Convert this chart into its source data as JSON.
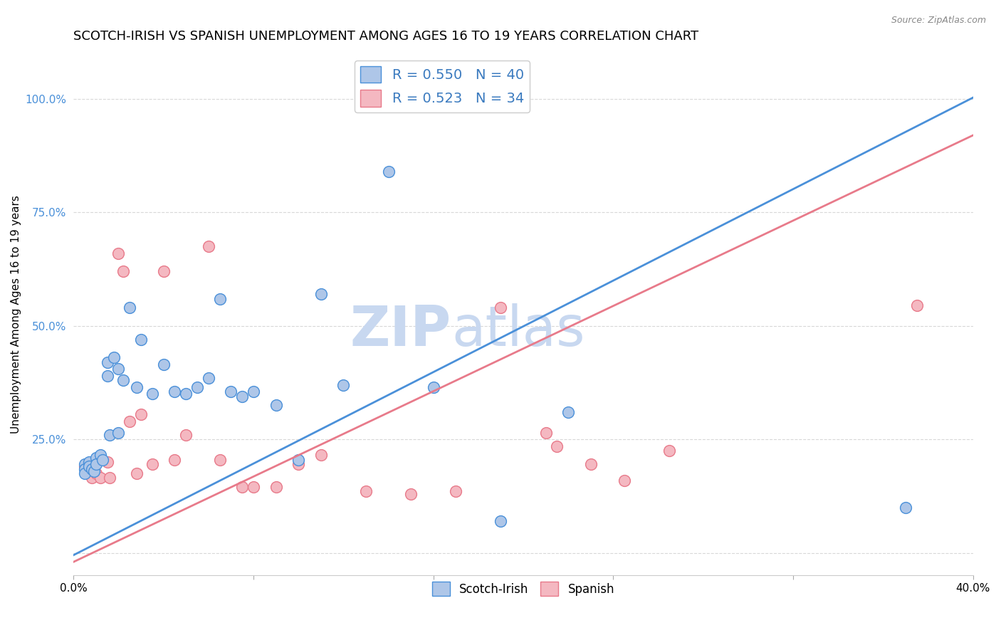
{
  "title": "SCOTCH-IRISH VS SPANISH UNEMPLOYMENT AMONG AGES 16 TO 19 YEARS CORRELATION CHART",
  "source": "Source: ZipAtlas.com",
  "xlabel": "",
  "ylabel": "Unemployment Among Ages 16 to 19 years",
  "xlim": [
    0.0,
    0.4
  ],
  "ylim": [
    -0.05,
    1.1
  ],
  "x_ticks": [
    0.0,
    0.08,
    0.16,
    0.24,
    0.32,
    0.4
  ],
  "x_tick_labels": [
    "0.0%",
    "",
    "",
    "",
    "",
    "40.0%"
  ],
  "y_ticks": [
    0.0,
    0.25,
    0.5,
    0.75,
    1.0
  ],
  "y_tick_labels": [
    "",
    "25.0%",
    "50.0%",
    "75.0%",
    "100.0%"
  ],
  "scotch_irish_color": "#aec6e8",
  "spanish_color": "#f4b8c1",
  "line_scotch_irish_color": "#4a90d9",
  "line_spanish_color": "#e87a8a",
  "R_scotch_irish": 0.55,
  "N_scotch_irish": 40,
  "R_spanish": 0.523,
  "N_spanish": 34,
  "scotch_irish_x": [
    0.005,
    0.005,
    0.005,
    0.007,
    0.007,
    0.008,
    0.009,
    0.01,
    0.01,
    0.012,
    0.013,
    0.015,
    0.015,
    0.016,
    0.018,
    0.02,
    0.02,
    0.022,
    0.025,
    0.028,
    0.03,
    0.035,
    0.04,
    0.045,
    0.05,
    0.055,
    0.06,
    0.065,
    0.07,
    0.075,
    0.08,
    0.09,
    0.1,
    0.11,
    0.12,
    0.14,
    0.16,
    0.19,
    0.22,
    0.37
  ],
  "scotch_irish_y": [
    0.195,
    0.185,
    0.175,
    0.2,
    0.19,
    0.185,
    0.18,
    0.21,
    0.195,
    0.215,
    0.205,
    0.42,
    0.39,
    0.26,
    0.43,
    0.405,
    0.265,
    0.38,
    0.54,
    0.365,
    0.47,
    0.35,
    0.415,
    0.355,
    0.35,
    0.365,
    0.385,
    0.56,
    0.355,
    0.345,
    0.355,
    0.325,
    0.205,
    0.57,
    0.37,
    0.84,
    0.365,
    0.07,
    0.31,
    0.1
  ],
  "spanish_x": [
    0.005,
    0.006,
    0.007,
    0.008,
    0.01,
    0.012,
    0.015,
    0.016,
    0.02,
    0.022,
    0.025,
    0.028,
    0.03,
    0.035,
    0.04,
    0.045,
    0.05,
    0.06,
    0.065,
    0.075,
    0.08,
    0.09,
    0.1,
    0.11,
    0.13,
    0.15,
    0.17,
    0.19,
    0.21,
    0.215,
    0.23,
    0.245,
    0.265,
    0.375
  ],
  "spanish_y": [
    0.19,
    0.18,
    0.175,
    0.165,
    0.175,
    0.165,
    0.2,
    0.165,
    0.66,
    0.62,
    0.29,
    0.175,
    0.305,
    0.195,
    0.62,
    0.205,
    0.26,
    0.675,
    0.205,
    0.145,
    0.145,
    0.145,
    0.195,
    0.215,
    0.135,
    0.13,
    0.135,
    0.54,
    0.265,
    0.235,
    0.195,
    0.16,
    0.225,
    0.545
  ],
  "watermark_zip": "ZIP",
  "watermark_atlas": "atlas",
  "watermark_color": "#c8d8f0",
  "marker_size": 130,
  "title_fontsize": 13,
  "axis_label_fontsize": 11,
  "tick_fontsize": 11,
  "legend_text_color": "#3a7abf",
  "grid_color": "#d8d8d8",
  "line_slope_scotch": 2.52,
  "line_intercept_scotch": -0.005,
  "line_slope_spanish": 2.35,
  "line_intercept_spanish": -0.02
}
